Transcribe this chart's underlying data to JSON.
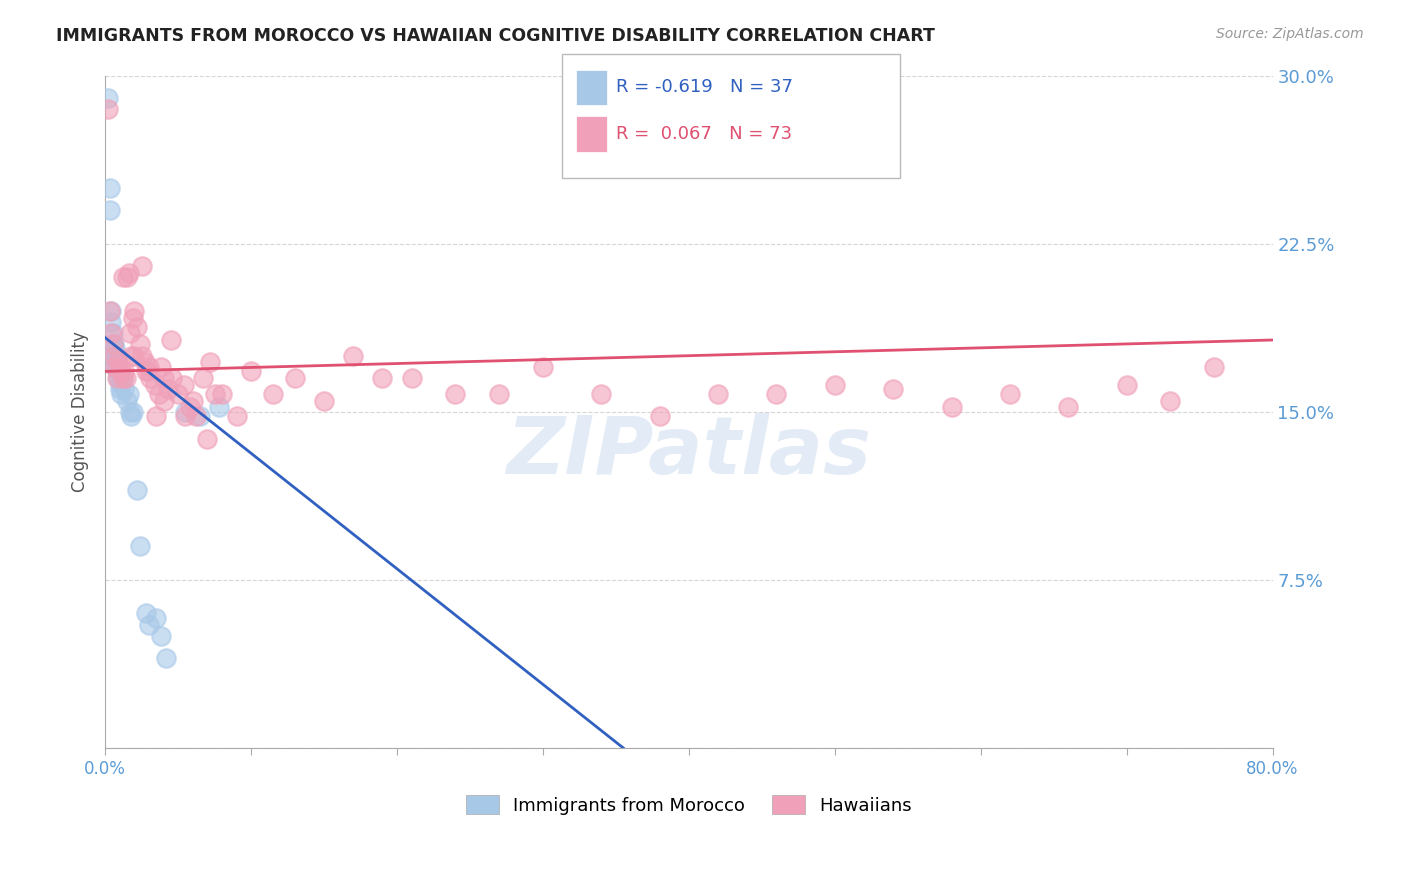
{
  "title": "IMMIGRANTS FROM MOROCCO VS HAWAIIAN COGNITIVE DISABILITY CORRELATION CHART",
  "source": "Source: ZipAtlas.com",
  "ylabel": "Cognitive Disability",
  "watermark": "ZIPatlas",
  "legend_blue_R": -0.619,
  "legend_blue_N": 37,
  "legend_pink_R": 0.067,
  "legend_pink_N": 73,
  "xlim": [
    0.0,
    0.8
  ],
  "ylim": [
    0.0,
    0.3
  ],
  "xticks": [
    0.0,
    0.1,
    0.2,
    0.3,
    0.4,
    0.5,
    0.6,
    0.7,
    0.8
  ],
  "yticks": [
    0.0,
    0.075,
    0.15,
    0.225,
    0.3
  ],
  "ytick_labels": [
    "",
    "7.5%",
    "15.0%",
    "22.5%",
    "30.0%"
  ],
  "xtick_labels": [
    "0.0%",
    "",
    "",
    "",
    "",
    "",
    "",
    "",
    "80.0%"
  ],
  "blue_color": "#a8c8e8",
  "pink_color": "#f0a0b8",
  "blue_line_color": "#3060c0",
  "pink_line_color": "#e05070",
  "axis_tick_color": "#5b9bd5",
  "grid_color": "#cccccc",
  "background_color": "#ffffff",
  "blue_scatter_x": [
    0.002,
    0.003,
    0.003,
    0.004,
    0.004,
    0.005,
    0.005,
    0.005,
    0.006,
    0.006,
    0.007,
    0.007,
    0.007,
    0.008,
    0.008,
    0.009,
    0.009,
    0.01,
    0.01,
    0.011,
    0.012,
    0.013,
    0.015,
    0.016,
    0.017,
    0.018,
    0.019,
    0.022,
    0.024,
    0.028,
    0.03,
    0.035,
    0.038,
    0.042,
    0.055,
    0.065,
    0.078
  ],
  "blue_scatter_y": [
    0.29,
    0.25,
    0.24,
    0.195,
    0.19,
    0.185,
    0.18,
    0.178,
    0.18,
    0.175,
    0.178,
    0.175,
    0.17,
    0.175,
    0.17,
    0.168,
    0.165,
    0.163,
    0.16,
    0.158,
    0.165,
    0.16,
    0.155,
    0.158,
    0.15,
    0.148,
    0.15,
    0.115,
    0.09,
    0.06,
    0.055,
    0.058,
    0.05,
    0.04,
    0.15,
    0.148,
    0.152
  ],
  "pink_scatter_x": [
    0.002,
    0.003,
    0.004,
    0.005,
    0.006,
    0.007,
    0.008,
    0.009,
    0.01,
    0.011,
    0.012,
    0.013,
    0.014,
    0.015,
    0.016,
    0.017,
    0.018,
    0.019,
    0.02,
    0.022,
    0.024,
    0.025,
    0.027,
    0.029,
    0.031,
    0.034,
    0.037,
    0.04,
    0.043,
    0.046,
    0.05,
    0.054,
    0.058,
    0.062,
    0.067,
    0.072,
    0.08,
    0.09,
    0.1,
    0.115,
    0.13,
    0.15,
    0.17,
    0.19,
    0.21,
    0.24,
    0.27,
    0.3,
    0.34,
    0.38,
    0.42,
    0.46,
    0.5,
    0.54,
    0.58,
    0.62,
    0.66,
    0.7,
    0.73,
    0.76,
    0.012,
    0.02,
    0.03,
    0.04,
    0.025,
    0.038,
    0.045,
    0.035,
    0.028,
    0.06,
    0.055,
    0.07,
    0.075
  ],
  "pink_scatter_y": [
    0.285,
    0.195,
    0.185,
    0.18,
    0.175,
    0.17,
    0.165,
    0.172,
    0.17,
    0.168,
    0.165,
    0.168,
    0.165,
    0.21,
    0.212,
    0.185,
    0.175,
    0.192,
    0.195,
    0.188,
    0.18,
    0.175,
    0.172,
    0.168,
    0.165,
    0.162,
    0.158,
    0.165,
    0.16,
    0.165,
    0.158,
    0.162,
    0.152,
    0.148,
    0.165,
    0.172,
    0.158,
    0.148,
    0.168,
    0.158,
    0.165,
    0.155,
    0.175,
    0.165,
    0.165,
    0.158,
    0.158,
    0.17,
    0.158,
    0.148,
    0.158,
    0.158,
    0.162,
    0.16,
    0.152,
    0.158,
    0.152,
    0.162,
    0.155,
    0.17,
    0.21,
    0.175,
    0.17,
    0.155,
    0.215,
    0.17,
    0.182,
    0.148,
    0.168,
    0.155,
    0.148,
    0.138,
    0.158
  ],
  "blue_trend_x": [
    0.0,
    0.355
  ],
  "blue_trend_y": [
    0.183,
    0.0
  ],
  "pink_trend_x": [
    0.0,
    0.8
  ],
  "pink_trend_y": [
    0.168,
    0.182
  ]
}
